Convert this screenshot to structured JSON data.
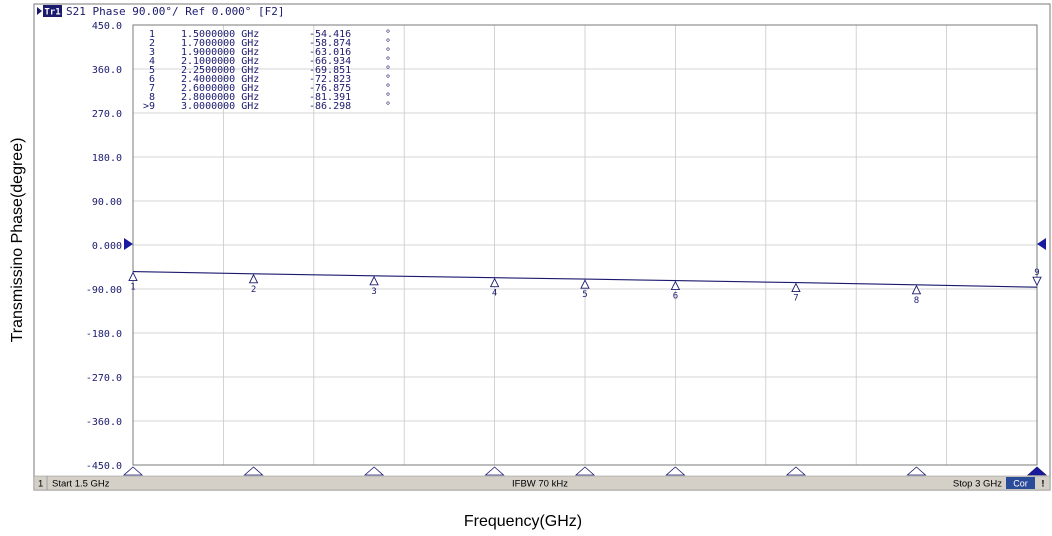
{
  "header": {
    "trace_badge": "Tr1",
    "text": "S21 Phase 90.00°/ Ref 0.000° [F2]"
  },
  "marker_table": [
    {
      "id": "1",
      "freq": "1.5000000 GHz",
      "value": "-54.416",
      "unit": "°"
    },
    {
      "id": "2",
      "freq": "1.7000000 GHz",
      "value": "-58.874",
      "unit": "°"
    },
    {
      "id": "3",
      "freq": "1.9000000 GHz",
      "value": "-63.016",
      "unit": "°"
    },
    {
      "id": "4",
      "freq": "2.1000000 GHz",
      "value": "-66.934",
      "unit": "°"
    },
    {
      "id": "5",
      "freq": "2.2500000 GHz",
      "value": "-69.851",
      "unit": "°"
    },
    {
      "id": "6",
      "freq": "2.4000000 GHz",
      "value": "-72.823",
      "unit": "°"
    },
    {
      "id": "7",
      "freq": "2.6000000 GHz",
      "value": "-76.875",
      "unit": "°"
    },
    {
      "id": "8",
      "freq": "2.8000000 GHz",
      "value": "-81.391",
      "unit": "°"
    },
    {
      "id": ">9",
      "freq": "3.0000000 GHz",
      "value": "-86.298",
      "unit": "°"
    }
  ],
  "status_bar": {
    "channel": "1",
    "start": "Start 1.5 GHz",
    "ifbw": "IFBW 70 kHz",
    "stop": "Stop 3 GHz",
    "cor": "Cor",
    "bang": "!"
  },
  "colors": {
    "trace": "#1a1a6e",
    "grid": "#c8c8c8",
    "frame": "#7a7a7a",
    "badge": "#1a1a6e",
    "ref_marker": "#1a1a9e",
    "status_bg": "#d4d0c8",
    "cor_bg": "#2a4a9a"
  },
  "chart_data": {
    "type": "line",
    "title": "S21 Phase 90.00°/ Ref 0.000° [F2]",
    "xlabel": "Frequency(GHz)",
    "ylabel": "Transmissino Phase(degree)",
    "xlim": [
      1.5,
      3.0
    ],
    "ylim": [
      -450,
      450
    ],
    "yticks": [
      450,
      360,
      270,
      180,
      90,
      0,
      -90,
      -180,
      -270,
      -360,
      -450
    ],
    "ytick_labels": [
      "450.0",
      "360.0",
      "270.0",
      "180.0",
      "90.00",
      "0.000",
      "-90.00",
      "-180.0",
      "-270.0",
      "-360.0",
      "-450.0"
    ],
    "x_divisions": 10,
    "grid": true,
    "reference_level": 0,
    "series": [
      {
        "name": "S21",
        "x": [
          1.5,
          1.7,
          1.9,
          2.1,
          2.25,
          2.4,
          2.6,
          2.8,
          3.0
        ],
        "y": [
          -54.416,
          -58.874,
          -63.016,
          -66.934,
          -69.851,
          -72.823,
          -76.875,
          -81.391,
          -86.298
        ]
      }
    ],
    "markers": [
      {
        "label": "1",
        "x": 1.5,
        "y": -54.416
      },
      {
        "label": "2",
        "x": 1.7,
        "y": -58.874
      },
      {
        "label": "3",
        "x": 1.9,
        "y": -63.016
      },
      {
        "label": "4",
        "x": 2.1,
        "y": -66.934
      },
      {
        "label": "5",
        "x": 2.25,
        "y": -69.851
      },
      {
        "label": "6",
        "x": 2.4,
        "y": -72.823
      },
      {
        "label": "7",
        "x": 2.6,
        "y": -76.875
      },
      {
        "label": "8",
        "x": 2.8,
        "y": -81.391
      },
      {
        "label": "9",
        "x": 3.0,
        "y": -86.298
      }
    ]
  }
}
